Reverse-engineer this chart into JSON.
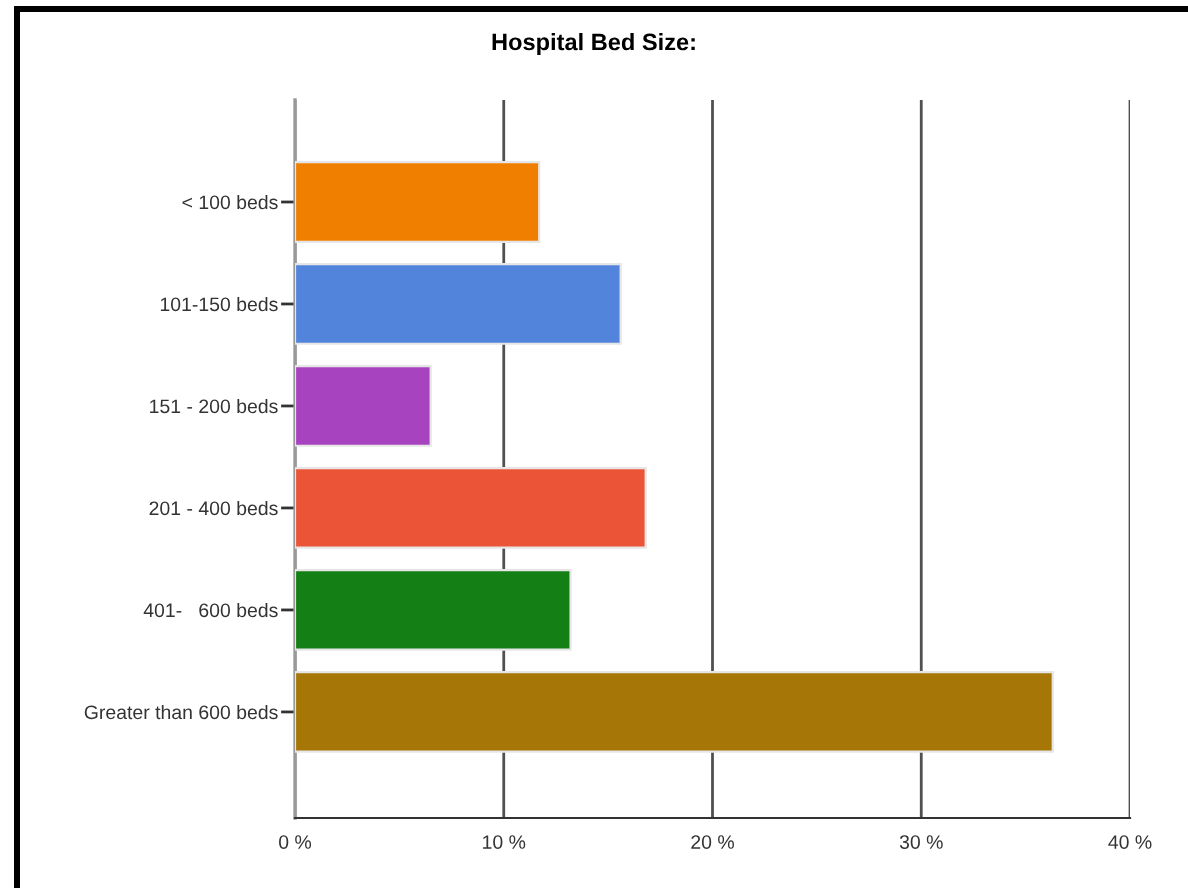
{
  "chart_data": {
    "type": "bar",
    "orientation": "horizontal",
    "title": "Hospital Bed Size:",
    "categories": [
      "< 100 beds",
      "101-150 beds",
      "151 - 200 beds",
      "201 - 400 beds",
      "401-   600 beds",
      "Greater than 600 beds"
    ],
    "values": [
      11.7,
      15.6,
      6.5,
      16.8,
      13.2,
      36.3
    ],
    "colors": [
      "#f07f00",
      "#5284dc",
      "#a843bf",
      "#ec5438",
      "#137f14",
      "#a67606"
    ],
    "xlim": [
      0,
      40
    ],
    "xticks": [
      {
        "value": 0,
        "label": "0 %"
      },
      {
        "value": 10,
        "label": "10 %"
      },
      {
        "value": 20,
        "label": "20 %"
      },
      {
        "value": 30,
        "label": "30 %"
      },
      {
        "value": 40,
        "label": "40 %"
      }
    ],
    "grid": "x",
    "legend": false
  }
}
